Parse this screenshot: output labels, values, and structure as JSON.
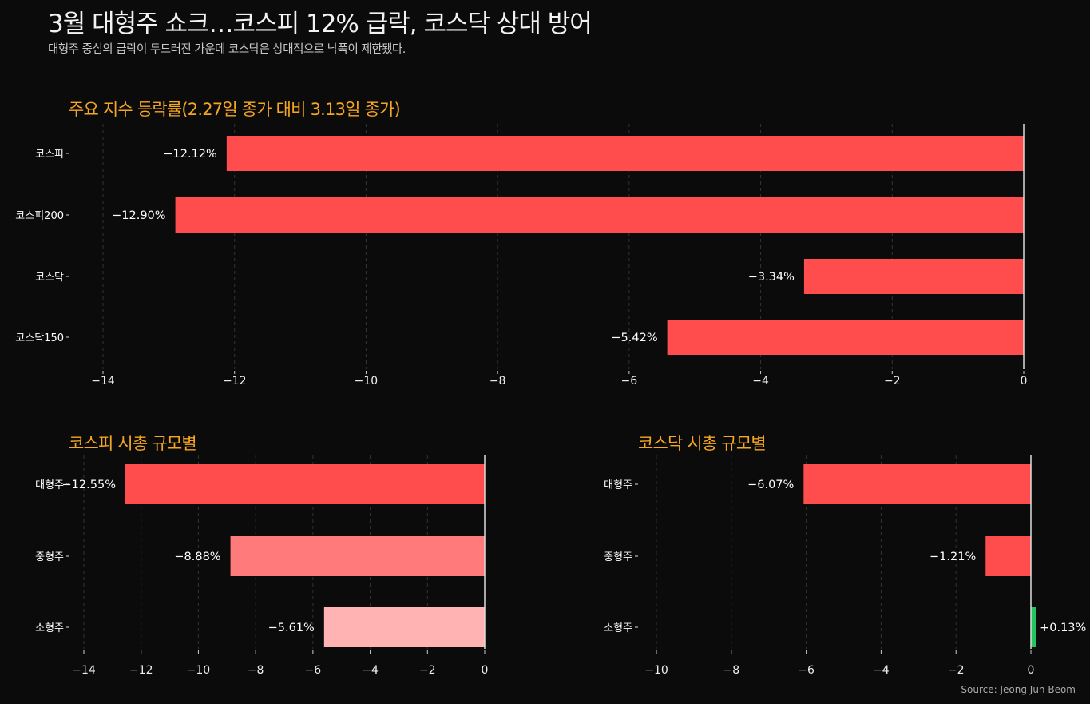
{
  "title": "3월 대형주 쇼크…코스피 12% 급락, 코스닥 상대 방어",
  "subtitle": "대형주 중심의 급락이 두드러진 가운데 코스닥은 상대적으로 낙폭이 제한됐다.",
  "source": "Source: Jeong Jun Beom",
  "chart_data": [
    {
      "type": "bar",
      "orientation": "horizontal",
      "title": "주요 지수 등락률(2.27일 종가 대비 3.13일 종가)",
      "categories": [
        "코스피",
        "코스피200",
        "코스닥",
        "코스닥150"
      ],
      "values": [
        -12.12,
        -12.9,
        -3.34,
        -5.42
      ],
      "labels": [
        "−12.12%",
        "−12.90%",
        "−3.34%",
        "−5.42%"
      ],
      "colors": [
        "#ff4d4d",
        "#ff4d4d",
        "#ff4d4d",
        "#ff4d4d"
      ],
      "xticks": [
        -14,
        -12,
        -10,
        -8,
        -6,
        -4,
        -2,
        0
      ],
      "xtick_labels": [
        "−14",
        "−12",
        "−10",
        "−8",
        "−6",
        "−4",
        "−2",
        "0"
      ],
      "xlim": [
        -14.2,
        0.1
      ],
      "grid": "vertical dashed"
    },
    {
      "type": "bar",
      "orientation": "horizontal",
      "title": "코스피 시총 규모별",
      "categories": [
        "대형주",
        "중형주",
        "소형주"
      ],
      "values": [
        -12.55,
        -8.88,
        -5.61
      ],
      "labels": [
        "−12.55%",
        "−8.88%",
        "−5.61%"
      ],
      "colors": [
        "#ff4d4d",
        "#ff7b7b",
        "#ffb3b3"
      ],
      "xticks": [
        -14,
        -12,
        -10,
        -8,
        -6,
        -4,
        -2,
        0
      ],
      "xtick_labels": [
        "−14",
        "−12",
        "−10",
        "−8",
        "−6",
        "−4",
        "−2",
        "0"
      ],
      "xlim": [
        -14.5,
        0.1
      ],
      "grid": "vertical dashed"
    },
    {
      "type": "bar",
      "orientation": "horizontal",
      "title": "코스닥 시총 규모별",
      "categories": [
        "대형주",
        "중형주",
        "소형주"
      ],
      "values": [
        -6.07,
        -1.21,
        0.13
      ],
      "labels": [
        "−6.07%",
        "−1.21%",
        "+0.13%"
      ],
      "colors": [
        "#ff4d4d",
        "#ff4d4d",
        "#22c55e"
      ],
      "xticks": [
        -10,
        -8,
        -6,
        -4,
        -2,
        0
      ],
      "xtick_labels": [
        "−10",
        "−8",
        "−6",
        "−4",
        "−2",
        "0"
      ],
      "xlim": [
        -10.5,
        0.2
      ],
      "grid": "vertical dashed"
    }
  ]
}
